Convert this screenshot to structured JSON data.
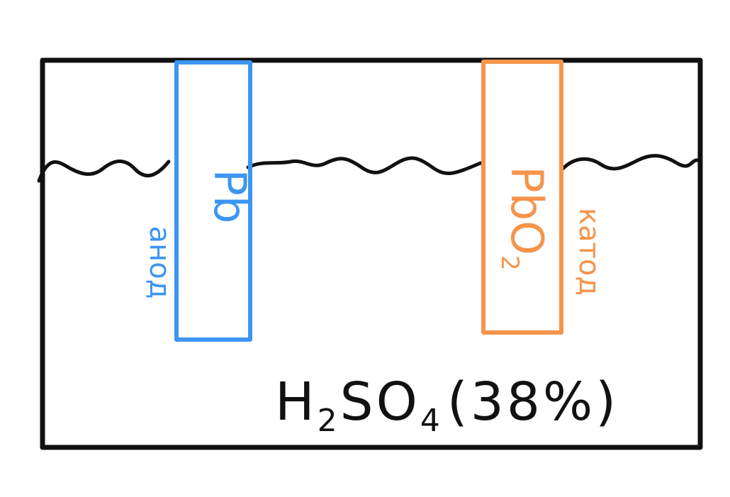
{
  "diagram": {
    "anode": {
      "material_label": "Pb",
      "role_label": "анод",
      "color": "#3d95f2"
    },
    "cathode": {
      "material_label": "PbO",
      "material_subscript": "2",
      "role_label": "катод",
      "color": "#f5944a"
    },
    "electrolyte": {
      "formula_main": "H",
      "formula_sub1": "2",
      "formula_mid": "SO",
      "formula_sub2": "4",
      "concentration": "(38%)",
      "color": "#111111"
    },
    "container_color": "#111111",
    "liquid_line_color": "#111111"
  }
}
